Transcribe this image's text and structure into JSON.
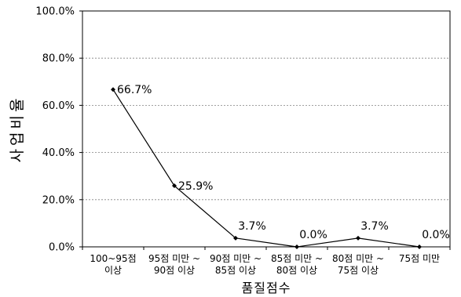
{
  "chart_data": {
    "type": "line",
    "title": "",
    "xlabel": "품질점수",
    "ylabel": "사업비율",
    "ylim": [
      0,
      100
    ],
    "y_ticks": [
      "0.0%",
      "20.0%",
      "40.0%",
      "60.0%",
      "80.0%",
      "100.0%"
    ],
    "y_tick_values": [
      0,
      20,
      40,
      60,
      80,
      100
    ],
    "grid": true,
    "legend": "none",
    "categories": [
      [
        "100~95점",
        "이상"
      ],
      [
        "95점 미만 ~",
        "90점 이상"
      ],
      [
        "90점 미만 ~",
        "85점 이상"
      ],
      [
        "85점 미만 ~",
        "80점 이상"
      ],
      [
        "80점 미만 ~",
        "75점 이상"
      ],
      [
        "75점 미만"
      ]
    ],
    "series": [
      {
        "values": [
          66.7,
          25.9,
          3.7,
          0.0,
          3.7,
          0.0
        ],
        "labels": [
          "66.7%",
          "25.9%",
          "3.7%",
          "0.0%",
          "3.7%",
          "0.0%"
        ],
        "color": "#000000"
      }
    ]
  }
}
